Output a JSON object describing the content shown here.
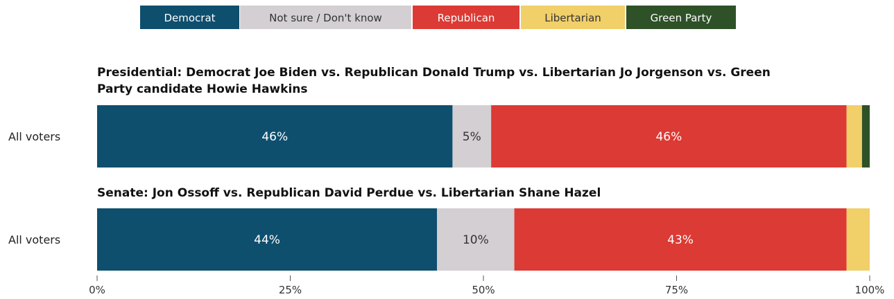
{
  "colors": {
    "Democrat": "#0e4f6e",
    "Not sure / Don't know": "#d3cfd2",
    "Republican": "#dc3a34",
    "Libertarian": "#f1cf69",
    "Green Party": "#2e5127"
  },
  "chart_data": {
    "type": "bar",
    "orientation": "horizontal",
    "stacked": true,
    "legend": {
      "position": "top",
      "entries": [
        "Democrat",
        "Not sure / Don't know",
        "Republican",
        "Libertarian",
        "Green Party"
      ]
    },
    "xlim": [
      0,
      100
    ],
    "x_ticks": [
      {
        "value": 0,
        "label": "0%"
      },
      {
        "value": 25,
        "label": "25%"
      },
      {
        "value": 50,
        "label": "50%"
      },
      {
        "value": 75,
        "label": "75%"
      },
      {
        "value": 100,
        "label": "100%"
      }
    ],
    "panels": [
      {
        "title": "Presidential: Democrat Joe Biden vs. Republican Donald Trump vs. Libertarian Jo Jorgenson vs. Green Party candidate Howie Hawkins",
        "title_lines": [
          "Presidential: Democrat Joe Biden vs. Republican Donald Trump vs. Libertarian Jo Jorgenson vs. Green",
          "Party candidate Howie Hawkins"
        ],
        "category": "All voters",
        "segments": [
          {
            "series": "Democrat",
            "value": 46,
            "label": "46%"
          },
          {
            "series": "Not sure / Don't know",
            "value": 5,
            "label": "5%"
          },
          {
            "series": "Republican",
            "value": 46,
            "label": "46%"
          },
          {
            "series": "Libertarian",
            "value": 2,
            "label": ""
          },
          {
            "series": "Green Party",
            "value": 1,
            "label": ""
          }
        ]
      },
      {
        "title": "Senate: Jon Ossoff vs. Republican David Perdue vs. Libertarian Shane Hazel",
        "title_lines": [
          "Senate: Jon Ossoff vs. Republican David Perdue vs. Libertarian Shane Hazel"
        ],
        "category": "All voters",
        "segments": [
          {
            "series": "Democrat",
            "value": 44,
            "label": "44%"
          },
          {
            "series": "Not sure / Don't know",
            "value": 10,
            "label": "10%"
          },
          {
            "series": "Republican",
            "value": 43,
            "label": "43%"
          },
          {
            "series": "Libertarian",
            "value": 3,
            "label": ""
          }
        ]
      }
    ]
  }
}
